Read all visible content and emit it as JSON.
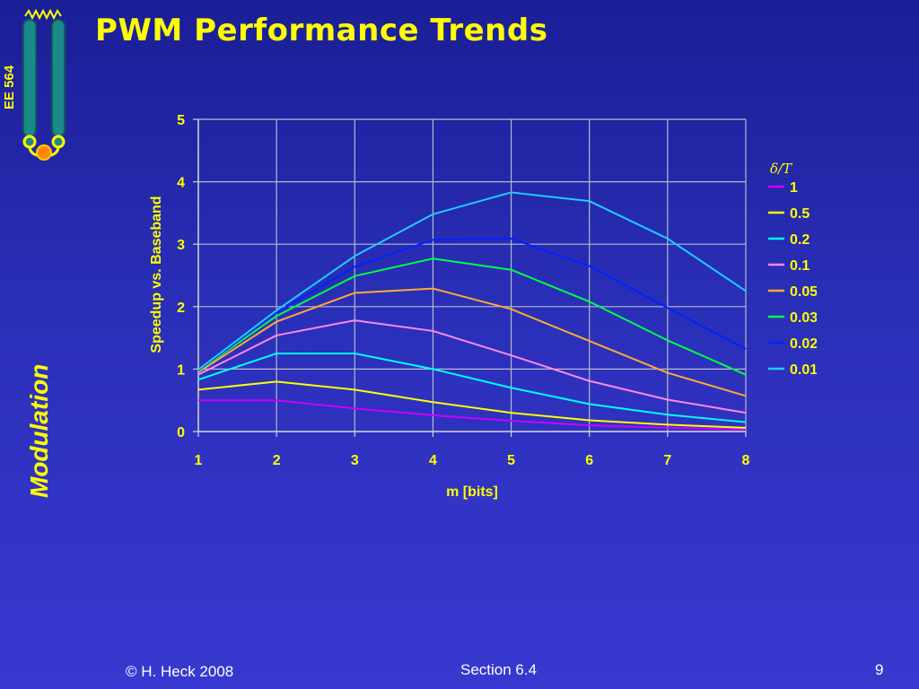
{
  "slide": {
    "title": "PWM Performance Trends",
    "course": "EE 564",
    "side_label": "Modulation",
    "footer_left": "© H. Heck 2008",
    "footer_center": "Section 6.4",
    "footer_right": "9"
  },
  "chart_data": {
    "type": "line",
    "xlabel": "m [bits]",
    "ylabel": "Speedup vs. Baseband",
    "legend_title": "δ/T",
    "legend_position": "right",
    "grid": true,
    "x": [
      1,
      2,
      3,
      4,
      5,
      6,
      7,
      8
    ],
    "xlim": [
      1,
      8
    ],
    "ylim": [
      0,
      5
    ],
    "xticks": [
      "1",
      "2",
      "3",
      "4",
      "5",
      "6",
      "7",
      "8"
    ],
    "yticks": [
      "0",
      "1",
      "2",
      "3",
      "4",
      "5"
    ],
    "series": [
      {
        "name": "1",
        "color": "#cc00ff",
        "values": [
          0.5,
          0.5,
          0.37,
          0.26,
          0.17,
          0.1,
          0.06,
          0.03
        ]
      },
      {
        "name": "0.5",
        "color": "#ffff00",
        "values": [
          0.67,
          0.8,
          0.67,
          0.47,
          0.3,
          0.18,
          0.11,
          0.06
        ]
      },
      {
        "name": "0.2",
        "color": "#00ffff",
        "values": [
          0.83,
          1.25,
          1.25,
          1.0,
          0.7,
          0.44,
          0.27,
          0.15
        ]
      },
      {
        "name": "0.1",
        "color": "#ff88ee",
        "values": [
          0.91,
          1.54,
          1.78,
          1.61,
          1.22,
          0.81,
          0.51,
          0.3
        ]
      },
      {
        "name": "0.05",
        "color": "#ffaa33",
        "values": [
          0.95,
          1.76,
          2.22,
          2.29,
          1.96,
          1.45,
          0.94,
          0.57
        ]
      },
      {
        "name": "0.03",
        "color": "#00ff44",
        "values": [
          0.97,
          1.85,
          2.49,
          2.77,
          2.59,
          2.08,
          1.46,
          0.91
        ]
      },
      {
        "name": "0.02",
        "color": "#0022ff",
        "values": [
          0.98,
          1.9,
          2.64,
          3.07,
          3.09,
          2.65,
          1.98,
          1.32
        ]
      },
      {
        "name": "0.01",
        "color": "#22ccff",
        "values": [
          0.99,
          1.94,
          2.81,
          3.48,
          3.83,
          3.69,
          3.09,
          2.25
        ]
      }
    ]
  }
}
